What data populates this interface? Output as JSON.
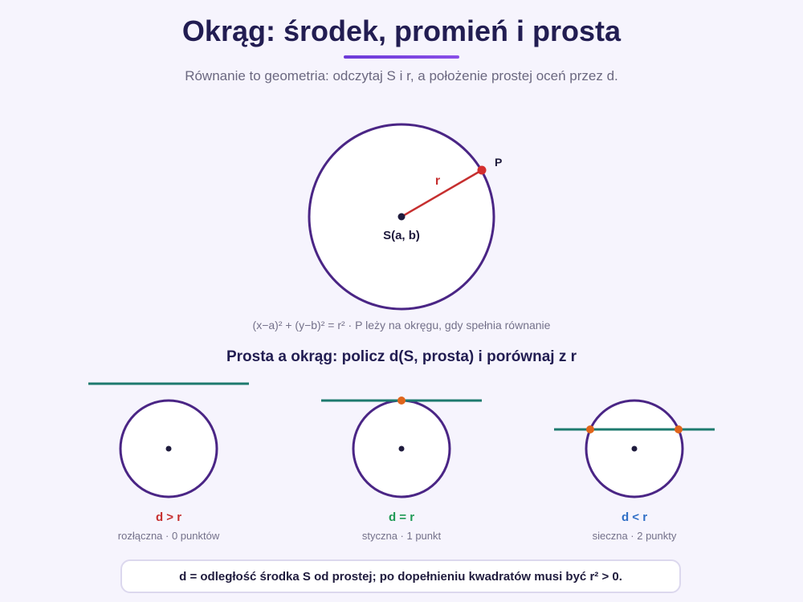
{
  "header": {
    "title": "Okrąg: środek, promień i prosta",
    "subtitle": "Równanie to geometria: odczytaj S i r, a położenie prostej oceń przez d."
  },
  "main_diagram": {
    "center_label": "S(a, b)",
    "radius_label": "r",
    "point_label": "P",
    "caption": "(x−a)² + (y−b)² = r² · P leży na okręgu, gdy spełnia równanie"
  },
  "cases_section": {
    "title": "Prosta a okrąg: policz d(S, prosta) i porównaj z r",
    "cases": [
      {
        "relation": "d > r",
        "description": "rozłączna · 0 punktów",
        "color": "#c62f2f"
      },
      {
        "relation": "d = r",
        "description": "styczna · 1 punkt",
        "color": "#1f9a55"
      },
      {
        "relation": "d < r",
        "description": "sieczna · 2 punkty",
        "color": "#2f6fc6"
      }
    ]
  },
  "note": "d = odległość środka S od prostej; po dopełnieniu kwadratów musi być r² > 0.",
  "colors": {
    "circle": "#4a2585",
    "radius": "#c62f2f",
    "line": "#1d7a6e",
    "intersection": "#e0651b",
    "accent": "#7a45e0"
  }
}
